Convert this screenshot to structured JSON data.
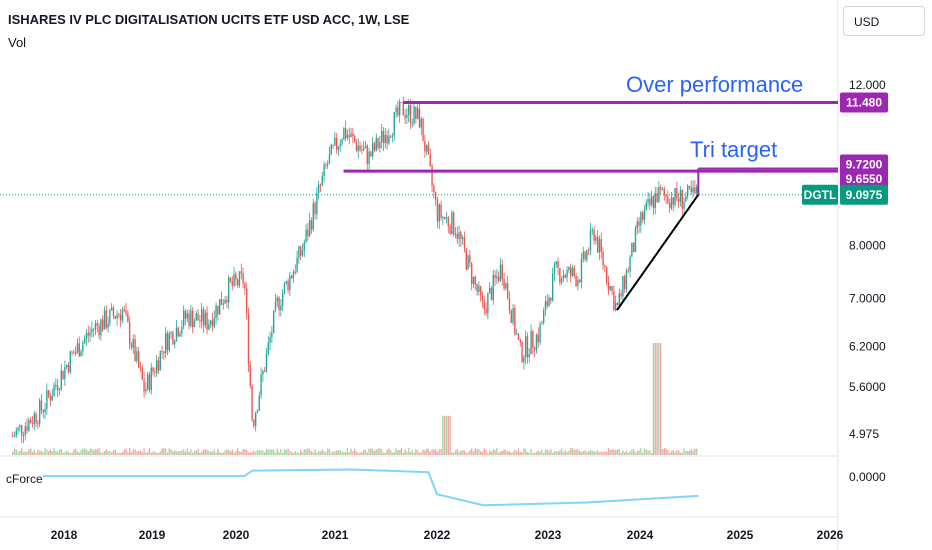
{
  "header": {
    "title": "ISHARES IV PLC DIGITALISATION UCITS ETF USD ACC, 1W, LSE",
    "volume_label": "Vol",
    "currency": "USD",
    "indicator_label": "cForce"
  },
  "annotations": {
    "over_performance": "Over performance",
    "tri_target": "Tri target"
  },
  "colors": {
    "up": "#26a69a",
    "down": "#ef5350",
    "purple": "#9c27b0",
    "ticker_bg": "#089981",
    "indicator_line": "#81d4fa"
  },
  "chart_data": {
    "type": "candlestick",
    "title": "ISHARES IV PLC DIGITALISATION UCITS ETF USD ACC, 1W, LSE",
    "x_labels": [
      "2018",
      "2019",
      "2020",
      "2021",
      "2022",
      "2023",
      "2024",
      "2025",
      "2026"
    ],
    "y_scale": "log",
    "y_ticks": [
      "12.000",
      "8.0000",
      "7.0000",
      "6.2000",
      "5.6000",
      "4.975"
    ],
    "indicator_zero_label": "0.0000",
    "price_badges": [
      {
        "label": "11.480",
        "value": 11.48,
        "color": "#9c27b0"
      },
      {
        "label": "9.7200",
        "value": 9.72,
        "color": "#9c27b0"
      },
      {
        "label": "9.6550",
        "value": 9.655,
        "color": "#9c27b0"
      },
      {
        "label": "9.0975",
        "value": 9.0975,
        "color": "#089981",
        "ticker": "DGTL"
      }
    ],
    "horizontal_levels": [
      {
        "name": "Over performance",
        "value": 11.48,
        "from": "2021-09"
      },
      {
        "name": "Tri target",
        "value": 9.655,
        "from": "2021-02"
      }
    ],
    "trend_line": [
      {
        "date": "2023-10",
        "value": 6.8
      },
      {
        "date": "2024-08",
        "value": 9.1
      }
    ],
    "price_waypoints": [
      [
        "2017-06",
        4.95
      ],
      [
        "2017-10",
        5.3
      ],
      [
        "2018-02",
        6.05
      ],
      [
        "2018-05",
        6.5
      ],
      [
        "2018-09",
        6.8
      ],
      [
        "2018-12",
        5.55
      ],
      [
        "2019-03",
        6.3
      ],
      [
        "2019-06",
        6.7
      ],
      [
        "2019-09",
        6.6
      ],
      [
        "2019-12",
        7.2
      ],
      [
        "2020-02",
        7.35
      ],
      [
        "2020-03",
        5.1
      ],
      [
        "2020-06",
        6.9
      ],
      [
        "2020-09",
        7.9
      ],
      [
        "2020-12",
        9.8
      ],
      [
        "2021-02",
        10.7
      ],
      [
        "2021-05",
        10.0
      ],
      [
        "2021-09",
        11.3
      ],
      [
        "2021-11",
        11.0
      ],
      [
        "2022-01",
        8.7
      ],
      [
        "2022-03",
        8.4
      ],
      [
        "2022-06",
        6.8
      ],
      [
        "2022-08",
        7.6
      ],
      [
        "2022-10",
        6.1
      ],
      [
        "2022-12",
        6.4
      ],
      [
        "2023-02",
        7.5
      ],
      [
        "2023-05",
        7.4
      ],
      [
        "2023-07",
        8.3
      ],
      [
        "2023-10",
        6.8
      ],
      [
        "2024-01",
        8.5
      ],
      [
        "2024-03",
        9.1
      ],
      [
        "2024-06",
        9.0
      ],
      [
        "2024-08",
        9.0975
      ]
    ],
    "volume_spikes": [
      {
        "date": "2022-02",
        "level": 0.35
      },
      {
        "date": "2024-03",
        "level": 1.0
      }
    ],
    "indicator_series": [
      [
        "2017-06",
        -0.02
      ],
      [
        "2020-02",
        -0.02
      ],
      [
        "2020-03",
        0.08
      ],
      [
        "2021-03",
        0.1
      ],
      [
        "2021-12",
        0.05
      ],
      [
        "2022-01",
        -0.35
      ],
      [
        "2022-06",
        -0.55
      ],
      [
        "2023-06",
        -0.5
      ],
      [
        "2024-08",
        -0.38
      ]
    ]
  }
}
